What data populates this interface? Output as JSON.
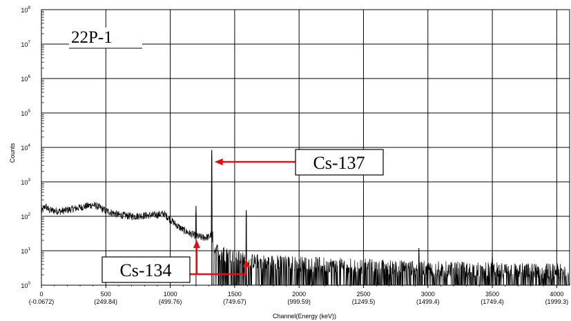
{
  "chart_data": {
    "type": "line",
    "title": "",
    "sample_label": "22P-1",
    "xlabel": "Channel(Energy (keV))",
    "ylabel": "Counts",
    "xlim": [
      0,
      4100
    ],
    "ylim_log10": [
      0,
      8
    ],
    "y_scale": "log",
    "grid": true,
    "x_ticks": [
      {
        "value": 0,
        "label": "0",
        "sublabel": "(-0.0672)"
      },
      {
        "value": 500,
        "label": "500",
        "sublabel": "(249.84)"
      },
      {
        "value": 1000,
        "label": "1000",
        "sublabel": "(499.76)"
      },
      {
        "value": 1500,
        "label": "1500",
        "sublabel": "(749.67)"
      },
      {
        "value": 2000,
        "label": "2000",
        "sublabel": "(999.59)"
      },
      {
        "value": 2500,
        "label": "2500",
        "sublabel": "(1249.5)"
      },
      {
        "value": 3000,
        "label": "3000",
        "sublabel": "(1499.4)"
      },
      {
        "value": 3500,
        "label": "3500",
        "sublabel": "(1749.4)"
      },
      {
        "value": 4000,
        "label": "4000",
        "sublabel": "(1999.3)"
      }
    ],
    "y_ticks": [
      {
        "exp": 0,
        "base": "10",
        "power": "0"
      },
      {
        "exp": 1,
        "base": "10",
        "power": "1"
      },
      {
        "exp": 2,
        "base": "10",
        "power": "2"
      },
      {
        "exp": 3,
        "base": "10",
        "power": "3"
      },
      {
        "exp": 4,
        "base": "10",
        "power": "4"
      },
      {
        "exp": 5,
        "base": "10",
        "power": "5"
      },
      {
        "exp": 6,
        "base": "10",
        "power": "6"
      },
      {
        "exp": 7,
        "base": "10",
        "power": "7"
      },
      {
        "exp": 8,
        "base": "10",
        "power": "8"
      }
    ],
    "spectrum_trend": [
      [
        0,
        130
      ],
      [
        30,
        200
      ],
      [
        60,
        150
      ],
      [
        150,
        140
      ],
      [
        250,
        165
      ],
      [
        330,
        190
      ],
      [
        400,
        215
      ],
      [
        440,
        190
      ],
      [
        500,
        145
      ],
      [
        600,
        110
      ],
      [
        700,
        100
      ],
      [
        800,
        105
      ],
      [
        900,
        110
      ],
      [
        950,
        120
      ],
      [
        1000,
        80
      ],
      [
        1050,
        55
      ],
      [
        1100,
        40
      ],
      [
        1150,
        32
      ],
      [
        1200,
        27
      ],
      [
        1250,
        24
      ],
      [
        1300,
        25
      ],
      [
        1320,
        30
      ],
      [
        1340,
        7
      ],
      [
        1400,
        5
      ],
      [
        1500,
        4
      ],
      [
        1600,
        3
      ],
      [
        2000,
        2.5
      ],
      [
        3000,
        1.8
      ],
      [
        4100,
        1.5
      ]
    ],
    "peaks": [
      {
        "x": 1200,
        "y": 200
      },
      {
        "x": 1322,
        "y": 8500
      },
      {
        "x": 1590,
        "y": 150
      },
      {
        "x": 2930,
        "y": 12
      },
      {
        "x": 3500,
        "y": 9
      }
    ],
    "annotations": [
      {
        "id": "cs137",
        "text": "Cs-137",
        "target_channel": 1322,
        "target_counts": 3800
      },
      {
        "id": "cs134",
        "text": "Cs-134",
        "targets": [
          {
            "channel": 1205,
            "counts": 25
          },
          {
            "channel": 1590,
            "counts": 4
          }
        ]
      }
    ],
    "colors": {
      "trace": "#000000",
      "arrow": "#e01010",
      "grid": "#000000"
    }
  }
}
